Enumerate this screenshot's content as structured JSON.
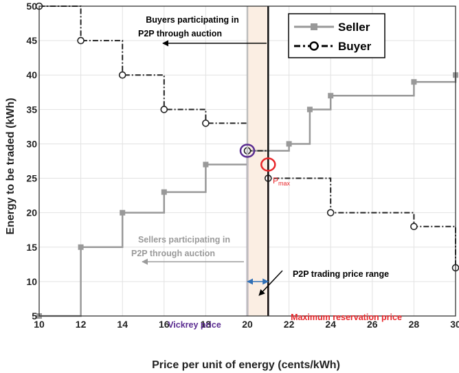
{
  "chart_data": {
    "type": "line",
    "xlabel": "Price per unit of energy (cents/kWh)",
    "ylabel": "Energy to be traded (kWh)",
    "xlim": [
      10,
      30
    ],
    "ylim": [
      5,
      50
    ],
    "x_ticks": [
      "10",
      "12",
      "14",
      "16",
      "18",
      "20",
      "22",
      "24",
      "26",
      "28",
      "30"
    ],
    "y_ticks": [
      "5",
      "10",
      "15",
      "20",
      "25",
      "30",
      "35",
      "40",
      "45",
      "50"
    ],
    "grid": true,
    "legend_position": "top-right",
    "series": [
      {
        "name": "Seller",
        "color": "#999999",
        "style": "solid-step",
        "marker": "square",
        "x": [
          10,
          12,
          14,
          16,
          18,
          20,
          22,
          23,
          24,
          28,
          30
        ],
        "y": [
          5,
          15,
          20,
          23,
          27,
          29,
          30,
          35,
          37,
          39,
          40
        ]
      },
      {
        "name": "Buyer",
        "color": "#222222",
        "style": "dashdot-step",
        "marker": "circle",
        "x": [
          10,
          12,
          14,
          16,
          18,
          20,
          21,
          24,
          28,
          30
        ],
        "y": [
          50,
          45,
          40,
          35,
          33,
          29,
          25,
          20,
          18,
          12
        ]
      }
    ],
    "shaded_range": {
      "x0": 20,
      "x1": 21,
      "color": "#fbeee3"
    },
    "vertical_lines": [
      {
        "x": 20,
        "y_top": 29,
        "color": "#5b2d91"
      },
      {
        "x": 21,
        "y_top": 27,
        "color": "#e8262a"
      },
      {
        "x": 20,
        "y_top": 50,
        "color": "#bdbdbd"
      },
      {
        "x": 21,
        "y_top": 50,
        "color": "#111111"
      }
    ],
    "highlight_points": [
      {
        "x": 20,
        "y": 29,
        "color": "#5b2d91"
      },
      {
        "x": 21,
        "y": 27,
        "color": "#e8262a"
      }
    ],
    "range_marker": {
      "x0": 20,
      "x1": 21,
      "y": 10,
      "color": "#2f6fb6"
    },
    "annotations": {
      "buyers": [
        "Buyers participating in",
        "P2P through auction"
      ],
      "sellers": [
        "Sellers participating in",
        "P2P through auction"
      ],
      "range": "P2P trading price range",
      "vickrey": "Vickrey price",
      "max_res": "Maximum reservation price",
      "pmax_base": "P",
      "pmax_sub": "max"
    },
    "annotation_colors": {
      "buyers": "#000000",
      "sellers": "#9a9a9a",
      "range": "#000000",
      "vickrey": "#5b2d91",
      "max_res": "#e8262a",
      "pmax": "#e8262a"
    }
  }
}
